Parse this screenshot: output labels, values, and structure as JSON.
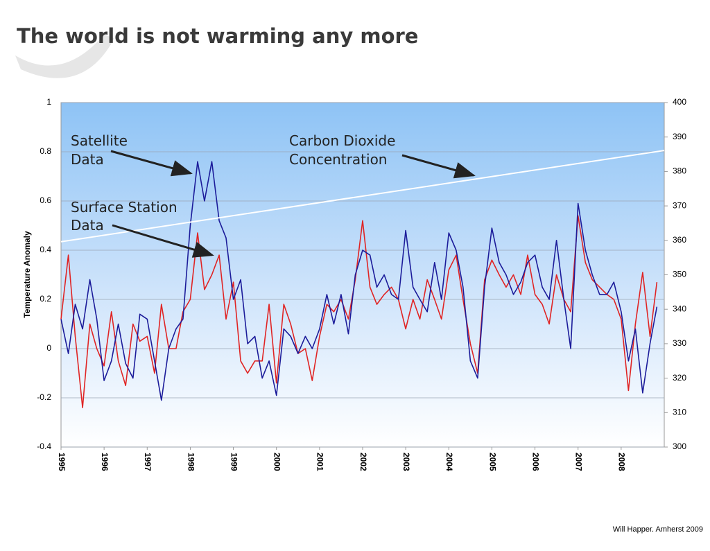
{
  "chart_data": {
    "type": "line",
    "title": "The world is not warming any more",
    "ylabel": "Temperature  Anomaly",
    "footer": "Will Happer. Amherst 2009",
    "annotations": [
      {
        "lines": [
          "Satellite",
          "Data"
        ]
      },
      {
        "lines": [
          "Carbon Dioxide",
          "Concentration"
        ]
      },
      {
        "lines": [
          "Surface Station",
          "Data"
        ]
      }
    ],
    "x": [
      1995,
      1995.17,
      1995.33,
      1995.5,
      1995.67,
      1995.83,
      1996,
      1996.17,
      1996.33,
      1996.5,
      1996.67,
      1996.83,
      1997,
      1997.17,
      1997.33,
      1997.5,
      1997.67,
      1997.83,
      1998,
      1998.17,
      1998.33,
      1998.5,
      1998.67,
      1998.83,
      1999,
      1999.17,
      1999.33,
      1999.5,
      1999.67,
      1999.83,
      2000,
      2000.17,
      2000.33,
      2000.5,
      2000.67,
      2000.83,
      2001,
      2001.17,
      2001.33,
      2001.5,
      2001.67,
      2001.83,
      2002,
      2002.17,
      2002.33,
      2002.5,
      2002.67,
      2002.83,
      2003,
      2003.17,
      2003.33,
      2003.5,
      2003.67,
      2003.83,
      2004,
      2004.17,
      2004.33,
      2004.5,
      2004.67,
      2004.83,
      2005,
      2005.17,
      2005.33,
      2005.5,
      2005.67,
      2005.83,
      2006,
      2006.17,
      2006.33,
      2006.5,
      2006.67,
      2006.83,
      2007,
      2007.17,
      2007.33,
      2007.5,
      2007.67,
      2007.83,
      2008,
      2008.17,
      2008.33,
      2008.5,
      2008.67,
      2008.83
    ],
    "series": [
      {
        "color": "#1c1c9a",
        "values": [
          0.12,
          -0.02,
          0.18,
          0.08,
          0.28,
          0.12,
          -0.13,
          -0.05,
          0.1,
          -0.06,
          -0.12,
          0.14,
          0.12,
          -0.05,
          -0.21,
          0.0,
          0.08,
          0.12,
          0.5,
          0.76,
          0.6,
          0.76,
          0.52,
          0.45,
          0.2,
          0.28,
          0.02,
          0.05,
          -0.12,
          -0.05,
          -0.19,
          0.08,
          0.05,
          -0.02,
          0.05,
          0.0,
          0.08,
          0.22,
          0.1,
          0.22,
          0.06,
          0.3,
          0.4,
          0.38,
          0.25,
          0.3,
          0.22,
          0.2,
          0.48,
          0.25,
          0.2,
          0.15,
          0.35,
          0.2,
          0.47,
          0.4,
          0.25,
          -0.05,
          -0.12,
          0.25,
          0.49,
          0.35,
          0.3,
          0.22,
          0.27,
          0.35,
          0.38,
          0.25,
          0.2,
          0.44,
          0.2,
          0.0,
          0.59,
          0.4,
          0.3,
          0.22,
          0.22,
          0.27,
          0.15,
          -0.05,
          0.08,
          -0.18,
          0.02,
          0.17
        ]
      },
      {
        "color": "#e02424",
        "values": [
          0.12,
          0.38,
          0.05,
          -0.24,
          0.1,
          0.0,
          -0.07,
          0.15,
          -0.05,
          -0.15,
          0.1,
          0.03,
          0.05,
          -0.1,
          0.18,
          0.0,
          0.0,
          0.15,
          0.2,
          0.47,
          0.24,
          0.3,
          0.38,
          0.12,
          0.27,
          -0.05,
          -0.1,
          -0.05,
          -0.05,
          0.18,
          -0.14,
          0.18,
          0.1,
          -0.02,
          0.0,
          -0.13,
          0.05,
          0.18,
          0.15,
          0.2,
          0.12,
          0.28,
          0.52,
          0.25,
          0.18,
          0.22,
          0.25,
          0.2,
          0.08,
          0.2,
          0.12,
          0.28,
          0.2,
          0.12,
          0.32,
          0.38,
          0.2,
          0.02,
          -0.1,
          0.28,
          0.36,
          0.3,
          0.25,
          0.3,
          0.22,
          0.38,
          0.22,
          0.18,
          0.1,
          0.3,
          0.2,
          0.15,
          0.54,
          0.35,
          0.28,
          0.25,
          0.22,
          0.2,
          0.12,
          -0.17,
          0.1,
          0.31,
          0.05,
          0.27
        ]
      },
      {
        "color": "#ffffff",
        "axis": "y2",
        "x": [
          1995,
          2009
        ],
        "values": [
          359.6,
          386.1
        ]
      }
    ],
    "xlim": [
      1995,
      2009
    ],
    "xticks": [
      1995,
      1996,
      1997,
      1998,
      1999,
      2000,
      2001,
      2002,
      2003,
      2004,
      2005,
      2006,
      2007,
      2008
    ],
    "ylim": [
      -0.4,
      1
    ],
    "yticks": [
      1,
      0.8,
      0.6,
      0.4,
      0.2,
      0,
      -0.2,
      -0.4
    ],
    "y2lim": [
      300,
      400
    ],
    "y2ticks": [
      400,
      390,
      380,
      370,
      360,
      350,
      340,
      330,
      320,
      310,
      300
    ],
    "grid": true
  }
}
